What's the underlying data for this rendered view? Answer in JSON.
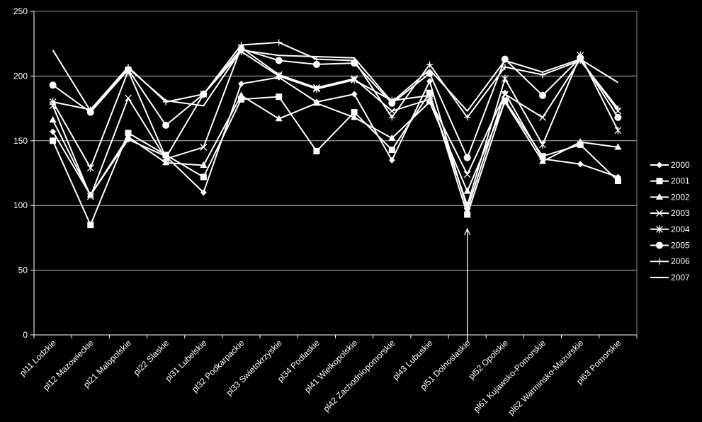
{
  "chart_data": {
    "type": "line",
    "title": "",
    "xlabel": "",
    "ylabel": "",
    "ylim": [
      0,
      250
    ],
    "yticks": [
      "0",
      "50",
      "100",
      "150",
      "200",
      "250"
    ],
    "grid": "horizontal",
    "legend_position": "right",
    "background": "#000000",
    "series_color": "#ffffff",
    "categories": [
      "pl11 Lodzkie",
      "pl12 Mazowieckie",
      "pl21 Malopolskie",
      "pl22 Slaskie",
      "pl31 Lubelskie",
      "pl32 Podkarpackie",
      "pl33 Swietokrzyskie",
      "pl34 Podlaskie",
      "pl41 Wielkopolskie",
      "pl42 Zachodniopomorskie",
      "pl43 Lubuskie",
      "pl51 Dolnoslaskie",
      "pl52 Opolskie",
      "pl61 Kujawsko-Pomorskie",
      "pl62 Warminsko-Mazurskie",
      "pl63 Pomorskie"
    ],
    "series": [
      {
        "name": "2000",
        "marker": "diamond",
        "values": [
          157,
          108,
          151,
          138,
          110,
          194,
          199,
          180,
          186,
          135,
          196,
          97,
          187,
          136,
          132,
          122
        ]
      },
      {
        "name": "2001",
        "marker": "square",
        "values": [
          150,
          85,
          156,
          139,
          122,
          182,
          184,
          142,
          172,
          143,
          187,
          93,
          181,
          138,
          147,
          119
        ]
      },
      {
        "name": "2002",
        "marker": "triangle",
        "values": [
          166,
          108,
          153,
          133,
          131,
          185,
          167,
          179,
          168,
          152,
          180,
          111,
          180,
          134,
          149,
          145
        ]
      },
      {
        "name": "2003",
        "marker": "x",
        "values": [
          177,
          107,
          183,
          136,
          145,
          222,
          201,
          191,
          198,
          173,
          182,
          124,
          186,
          168,
          213,
          173
        ]
      },
      {
        "name": "2004",
        "marker": "star",
        "values": [
          180,
          129,
          204,
          137,
          186,
          219,
          200,
          190,
          197,
          181,
          185,
          100,
          198,
          147,
          216,
          158
        ]
      },
      {
        "name": "2005",
        "marker": "circle",
        "values": [
          193,
          172,
          205,
          162,
          186,
          221,
          212,
          209,
          210,
          179,
          202,
          137,
          213,
          185,
          214,
          168
        ]
      },
      {
        "name": "2006",
        "marker": "plus",
        "values": [
          180,
          174,
          207,
          180,
          186,
          224,
          226,
          213,
          212,
          168,
          209,
          168,
          207,
          201,
          212,
          175
        ]
      },
      {
        "name": "2007",
        "marker": "none",
        "values": [
          220,
          173,
          206,
          181,
          177,
          220,
          216,
          215,
          214,
          180,
          205,
          173,
          212,
          203,
          213,
          195
        ]
      }
    ],
    "annotations": [
      {
        "type": "arrow",
        "category": "pl51 Dolnoslaskie",
        "from_value": -5,
        "to_value": 82
      }
    ]
  }
}
